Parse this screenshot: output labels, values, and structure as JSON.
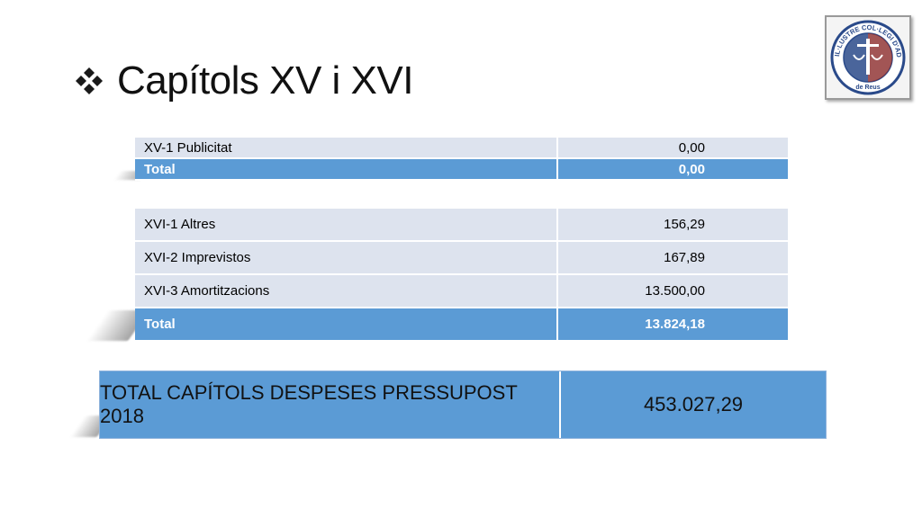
{
  "slide": {
    "title": "Capítols XV i XVI",
    "bullet_icon": "diamond-bullet-icon",
    "logo_text_top": "IL·LUSTRE COL·LEGI D'ADVOCATS",
    "logo_text_bottom": "de Reus"
  },
  "table_xv": {
    "rows": [
      {
        "label": "XV-1 Publicitat",
        "value": "0,00"
      }
    ],
    "total": {
      "label": "Total",
      "value": "0,00"
    }
  },
  "table_xvi": {
    "rows": [
      {
        "label": "XVI-1 Altres",
        "value": "156,29"
      },
      {
        "label": "XVI-2 Imprevistos",
        "value": "167,89"
      },
      {
        "label": "XVI-3 Amortitzacions",
        "value": "13.500,00"
      }
    ],
    "total": {
      "label": "Total",
      "value": "13.824,18"
    }
  },
  "grand_total": {
    "label": "TOTAL CAPÍTOLS DESPESES PRESSUPOST 2018",
    "value": "453.027,29"
  },
  "colors": {
    "accent_blue": "#5b9bd5",
    "row_light": "#dde3ee",
    "logo_blue": "#2a4a8a",
    "logo_red": "#8b2a2a"
  }
}
